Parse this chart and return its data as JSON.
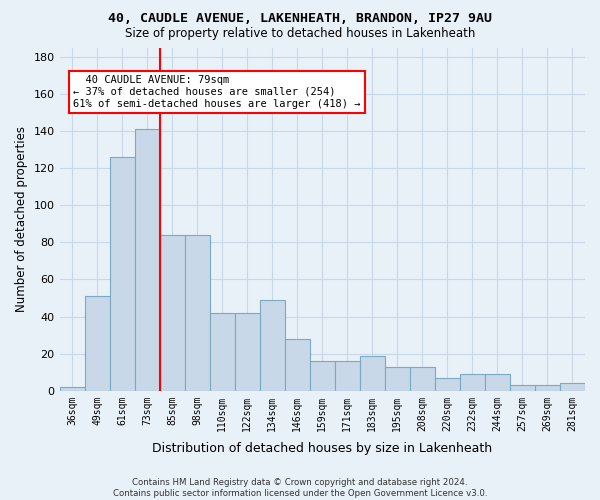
{
  "title1": "40, CAUDLE AVENUE, LAKENHEATH, BRANDON, IP27 9AU",
  "title2": "Size of property relative to detached houses in Lakenheath",
  "xlabel": "Distribution of detached houses by size in Lakenheath",
  "ylabel": "Number of detached properties",
  "categories": [
    "36sqm",
    "49sqm",
    "61sqm",
    "73sqm",
    "85sqm",
    "98sqm",
    "110sqm",
    "122sqm",
    "134sqm",
    "146sqm",
    "159sqm",
    "171sqm",
    "183sqm",
    "195sqm",
    "208sqm",
    "220sqm",
    "232sqm",
    "244sqm",
    "257sqm",
    "269sqm",
    "281sqm"
  ],
  "values": [
    2,
    51,
    126,
    141,
    84,
    84,
    42,
    42,
    49,
    28,
    16,
    16,
    19,
    13,
    13,
    7,
    9,
    9,
    3,
    3,
    4
  ],
  "bar_color": "#c8d8e8",
  "bar_edge_color": "#7aaabf",
  "grid_color": "#c8d8e8",
  "background_color": "#e8f0f8",
  "red_line_x": 3.5,
  "annotation_text": "  40 CAUDLE AVENUE: 79sqm\n← 37% of detached houses are smaller (254)\n61% of semi-detached houses are larger (418) →",
  "ylim": [
    0,
    185
  ],
  "yticks": [
    0,
    20,
    40,
    60,
    80,
    100,
    120,
    140,
    160,
    180
  ],
  "footer": "Contains HM Land Registry data © Crown copyright and database right 2024.\nContains public sector information licensed under the Open Government Licence v3.0."
}
